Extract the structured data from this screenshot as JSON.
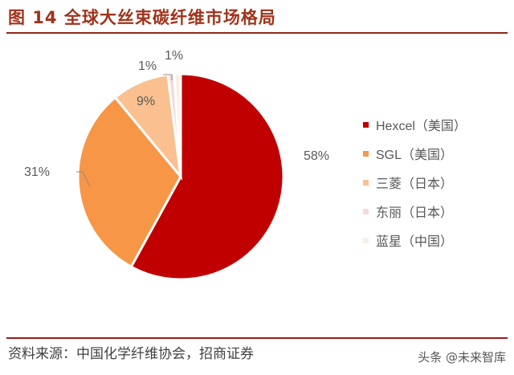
{
  "header": {
    "title": "图 14  全球大丝束碳纤维市场格局"
  },
  "chart_data": {
    "type": "pie",
    "title": "全球大丝束碳纤维市场格局",
    "figure_label": "图 14",
    "categories": [
      "Hexcel（美国）",
      "SGL（美国）",
      "三菱（日本）",
      "东丽（日本）",
      "蓝星（中国）"
    ],
    "values": [
      58,
      31,
      9,
      1,
      1
    ],
    "unit": "%",
    "data_labels": [
      "58%",
      "31%",
      "9%",
      "1%",
      "1%"
    ],
    "colors": [
      "#c00000",
      "#f79646",
      "#fac090",
      "#f2dcdb",
      "#fbeee6"
    ],
    "start_angle": "12 o'clock",
    "direction": "clockwise",
    "legend_position": "right"
  },
  "legend": {
    "items": [
      {
        "label": "Hexcel（美国）",
        "color": "#c00000"
      },
      {
        "label": "SGL（美国）",
        "color": "#f79646"
      },
      {
        "label": "三菱（日本）",
        "color": "#fac090"
      },
      {
        "label": "东丽（日本）",
        "color": "#f2dcdb"
      },
      {
        "label": "蓝星（中国）",
        "color": "#fbeee6"
      }
    ]
  },
  "labels": {
    "hexcel": "58%",
    "sgl": "31%",
    "mitsubishi": "9%",
    "toray": "1%",
    "bluestar": "1%"
  },
  "footer": {
    "source": "资料来源：中国化学纤维协会，招商证券",
    "watermark": "头条 @未来智库"
  }
}
